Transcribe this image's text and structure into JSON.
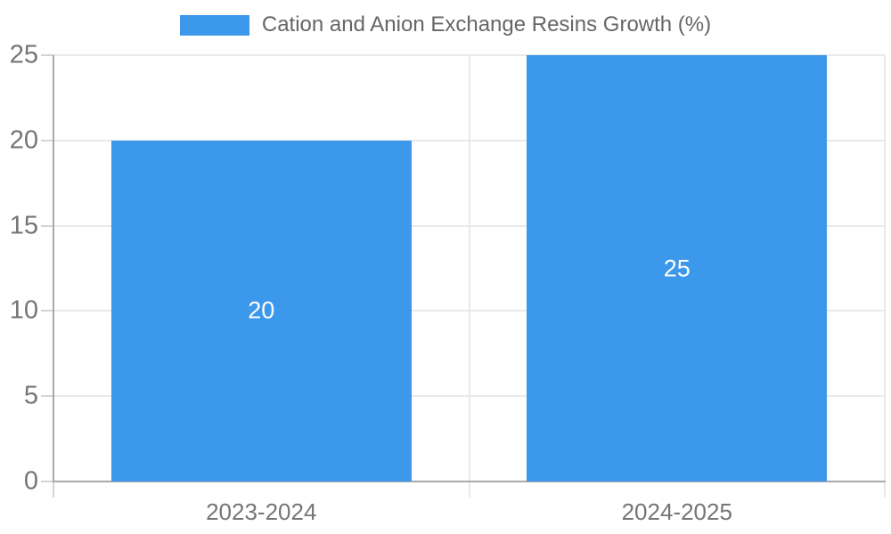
{
  "chart_data": {
    "type": "bar",
    "categories": [
      "2023-2024",
      "2024-2025"
    ],
    "values": [
      20,
      25
    ],
    "data_labels": [
      "20",
      "25"
    ],
    "title": "",
    "xlabel": "",
    "ylabel": "",
    "ylim": [
      0,
      25
    ],
    "yticks": [
      0,
      5,
      10,
      15,
      20,
      25
    ],
    "grid": true,
    "legend_position": "top",
    "legend_label": "Cation and Anion Exchange Resins Growth (%)"
  },
  "colors": {
    "bar": "#3b98eb",
    "gridline": "#e9e9e9",
    "axis": "#a9a9a9",
    "tick_mark": "#d4d4d4",
    "tick_text": "#757575",
    "legend_text": "#666666",
    "bar_label_text": "#ffffff"
  }
}
